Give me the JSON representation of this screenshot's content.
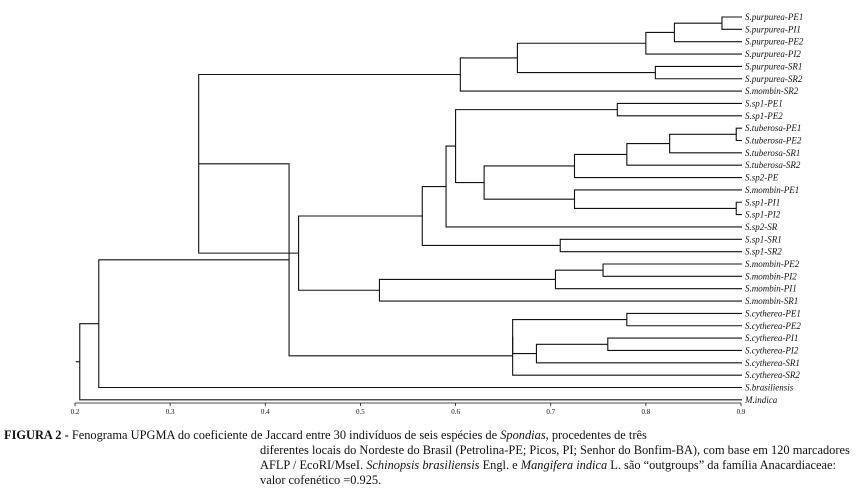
{
  "figure": {
    "leaves": [
      "S.purpurea-PE1",
      "S.purpurea-PI1",
      "S.purpurea-PE2",
      "S.purpurea-PI2",
      "S.purpurea-SR1",
      "S.purpurea-SR2",
      "S.mombin-SR2",
      "S.sp1-PE1",
      "S.sp1-PE2",
      "S.tuberosa-PE1",
      "S.tuberosa-PE2",
      "S.tuberosa-SR1",
      "S.tuberosa-SR2",
      "S.sp2-PE",
      "S.mombin-PE1",
      "S.sp1-PI1",
      "S.sp1-PI2",
      "S.sp2-SR",
      "S.sp1-SR1",
      "S.sp1-SR2",
      "S.mombin-PE2",
      "S.mombin-PI2",
      "S.mombin-PI1",
      "S.mombin-SR1",
      "S.cytherea-PE1",
      "S.cytherea-PE2",
      "S.cytherea-PI1",
      "S.cytherea-PI2",
      "S.cytherea-SR1",
      "S.cytherea-SR2",
      "S.brasiliensis",
      "M.indica"
    ],
    "merges": [
      {
        "a": 0,
        "b": 1,
        "sim": 0.88
      },
      {
        "a": 32,
        "b": 2,
        "sim": 0.83
      },
      {
        "a": 33,
        "b": 3,
        "sim": 0.8
      },
      {
        "a": 4,
        "b": 5,
        "sim": 0.81
      },
      {
        "a": 34,
        "b": 35,
        "sim": 0.665
      },
      {
        "a": 36,
        "b": 6,
        "sim": 0.605
      },
      {
        "a": 7,
        "b": 8,
        "sim": 0.77
      },
      {
        "a": 9,
        "b": 10,
        "sim": 0.895
      },
      {
        "a": 39,
        "b": 11,
        "sim": 0.825
      },
      {
        "a": 40,
        "b": 12,
        "sim": 0.78
      },
      {
        "a": 15,
        "b": 16,
        "sim": 0.895
      },
      {
        "a": 14,
        "b": 42,
        "sim": 0.725
      },
      {
        "a": 41,
        "b": 13,
        "sim": 0.725
      },
      {
        "a": 44,
        "b": 43,
        "sim": 0.63
      },
      {
        "a": 38,
        "b": 45,
        "sim": 0.6
      },
      {
        "a": 46,
        "b": 17,
        "sim": 0.59
      },
      {
        "a": 18,
        "b": 19,
        "sim": 0.71
      },
      {
        "a": 47,
        "b": 48,
        "sim": 0.565
      },
      {
        "a": 20,
        "b": 21,
        "sim": 0.755
      },
      {
        "a": 50,
        "b": 22,
        "sim": 0.705
      },
      {
        "a": 51,
        "b": 23,
        "sim": 0.52
      },
      {
        "a": 49,
        "b": 52,
        "sim": 0.435
      },
      {
        "a": 37,
        "b": 53,
        "sim": 0.33
      },
      {
        "a": 24,
        "b": 25,
        "sim": 0.78
      },
      {
        "a": 26,
        "b": 27,
        "sim": 0.76
      },
      {
        "a": 56,
        "b": 28,
        "sim": 0.685
      },
      {
        "a": 55,
        "b": 57,
        "sim": 0.66
      },
      {
        "a": 58,
        "b": 29,
        "sim": 0.66
      },
      {
        "a": 54,
        "b": 59,
        "sim": 0.425
      },
      {
        "a": 60,
        "b": 30,
        "sim": 0.225
      },
      {
        "a": 61,
        "b": 31,
        "sim": 0.205
      }
    ],
    "axis": {
      "min": 0.2,
      "max": 0.9,
      "ticks": [
        "0.2",
        "0.3",
        "0.4",
        "0.5",
        "0.6",
        "0.7",
        "0.8",
        "0.9"
      ]
    }
  },
  "caption": {
    "label": "FIGURA 2 -",
    "line1_text": " Fenograma UPGMA do coeficiente de Jaccard entre 30 indivíduos de seis espécies de ",
    "line1_italic": "Spondias,",
    "line1_end": " procedentes de três",
    "line2": "diferentes locais do Nordeste do Brasil (Petrolina-PE; Picos, PI; Senhor do Bonfim-BA), com base em 120 marcadores",
    "line3_start": "AFLP / EcoRI/MseI. ",
    "line3_italic1": "Schinopsis brasiliensis",
    "line3_mid": " Engl. e ",
    "line3_italic2": "Mangifera indica",
    "line3_end": " L. são “outgroups” da família Anacardiaceae:",
    "line4": "valor cofenético =0.925."
  }
}
